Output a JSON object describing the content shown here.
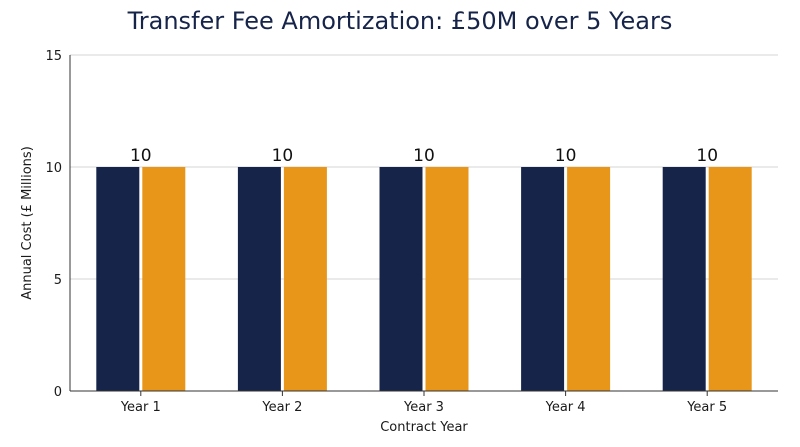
{
  "chart_data": {
    "type": "bar",
    "title": "Transfer Fee Amortization: £50M over 5 Years",
    "xlabel": "Contract Year",
    "ylabel": "Annual Cost (£ Millions)",
    "categories": [
      "Year 1",
      "Year 2",
      "Year 3",
      "Year 4",
      "Year 5"
    ],
    "series": [
      {
        "values": [
          10,
          10,
          10,
          10,
          10
        ],
        "color": "#16244a"
      },
      {
        "values": [
          10,
          10,
          10,
          10,
          10
        ],
        "color": "#e8961a"
      }
    ],
    "data_labels": [
      "10",
      "10",
      "10",
      "10",
      "10"
    ],
    "ylim": [
      0,
      15
    ],
    "yticks": [
      0,
      5,
      10,
      15
    ],
    "grid": true,
    "legend": "none"
  }
}
